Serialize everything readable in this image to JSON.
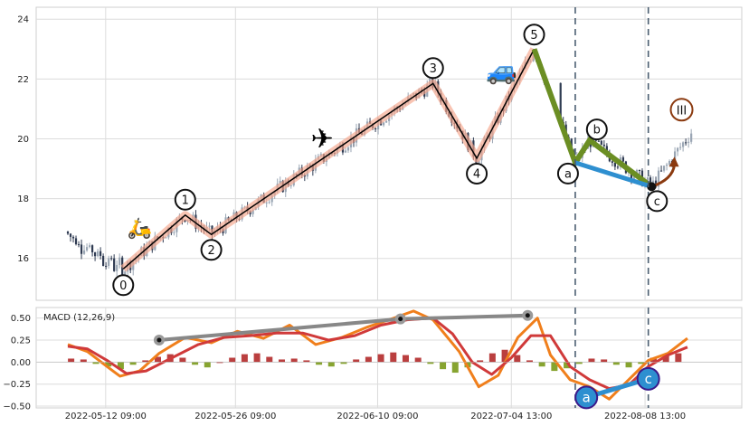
{
  "chart_data": [
    {
      "type": "candlestick",
      "panel": "price",
      "ylim": [
        14.6,
        24.4
      ],
      "yticks": [
        "16",
        "18",
        "20",
        "22",
        "24"
      ],
      "x_tick_labels": [
        "2022-05-12 09:00",
        "2022-05-26 09:00",
        "2022-06-10 09:00",
        "2022-07-04 13:00",
        "2022-08-08 13:00"
      ],
      "grid": true,
      "colors": {
        "up": "#9aa6b4",
        "down": "#2f3b52",
        "zigzag": "#000000",
        "zigzag_glow": "#f4a58a",
        "abc": "#6b8e23",
        "ac_line": "#2e8fd0",
        "projection": "#8b3a0f",
        "vline": "#4a5d70"
      },
      "waves": [
        {
          "label": "0",
          "t": 0.085,
          "y": 15.65
        },
        {
          "label": "1",
          "t": 0.18,
          "y": 17.45
        },
        {
          "label": "2",
          "t": 0.22,
          "y": 16.8
        },
        {
          "label": "3",
          "t": 0.56,
          "y": 21.85
        },
        {
          "label": "4",
          "t": 0.627,
          "y": 19.35
        },
        {
          "label": "5",
          "t": 0.715,
          "y": 23.0
        },
        {
          "label": "a",
          "t": 0.778,
          "y": 19.2
        },
        {
          "label": "b",
          "t": 0.8,
          "y": 19.95
        },
        {
          "label": "c",
          "t": 0.895,
          "y": 18.4
        }
      ],
      "projection": {
        "label": "III",
        "target_t": 0.93,
        "target_y": 19.25
      },
      "end_point": {
        "t": 0.935,
        "y": 20.9
      },
      "icons": [
        "scooter-icon",
        "airplane-icon",
        "car-icon"
      ],
      "vertical_line_times": [
        0.778,
        0.89
      ]
    },
    {
      "type": "bar+line",
      "panel": "macd",
      "title": "MACD (12,26,9)",
      "ylim": [
        -0.52,
        0.62
      ],
      "yticks": [
        "0.50",
        "0.25",
        "0.00",
        "−0.25",
        "−0.50"
      ],
      "series": [
        {
          "color": "#f07f1c",
          "points": [
            [
              0,
              0.2
            ],
            [
              0.03,
              0.12
            ],
            [
              0.06,
              -0.05
            ],
            [
              0.08,
              -0.16
            ],
            [
              0.11,
              -0.1
            ],
            [
              0.14,
              0.1
            ],
            [
              0.18,
              0.28
            ],
            [
              0.22,
              0.22
            ],
            [
              0.26,
              0.35
            ],
            [
              0.3,
              0.27
            ],
            [
              0.34,
              0.42
            ],
            [
              0.38,
              0.2
            ],
            [
              0.42,
              0.28
            ],
            [
              0.46,
              0.4
            ],
            [
              0.5,
              0.5
            ],
            [
              0.53,
              0.58
            ],
            [
              0.56,
              0.48
            ],
            [
              0.6,
              0.12
            ],
            [
              0.63,
              -0.28
            ],
            [
              0.66,
              -0.15
            ],
            [
              0.69,
              0.28
            ],
            [
              0.72,
              0.5
            ],
            [
              0.74,
              0.08
            ],
            [
              0.77,
              -0.2
            ],
            [
              0.8,
              -0.28
            ],
            [
              0.83,
              -0.42
            ],
            [
              0.86,
              -0.2
            ],
            [
              0.89,
              0.02
            ],
            [
              0.92,
              0.1
            ],
            [
              0.95,
              0.27
            ]
          ]
        },
        {
          "color": "#d03a3a",
          "points": [
            [
              0,
              0.18
            ],
            [
              0.03,
              0.15
            ],
            [
              0.06,
              0.02
            ],
            [
              0.09,
              -0.13
            ],
            [
              0.12,
              -0.1
            ],
            [
              0.16,
              0.05
            ],
            [
              0.2,
              0.2
            ],
            [
              0.24,
              0.28
            ],
            [
              0.28,
              0.3
            ],
            [
              0.32,
              0.33
            ],
            [
              0.36,
              0.33
            ],
            [
              0.4,
              0.25
            ],
            [
              0.44,
              0.3
            ],
            [
              0.48,
              0.42
            ],
            [
              0.52,
              0.48
            ],
            [
              0.56,
              0.5
            ],
            [
              0.59,
              0.32
            ],
            [
              0.62,
              0.0
            ],
            [
              0.65,
              -0.14
            ],
            [
              0.68,
              0.05
            ],
            [
              0.71,
              0.3
            ],
            [
              0.74,
              0.3
            ],
            [
              0.77,
              -0.05
            ],
            [
              0.8,
              -0.2
            ],
            [
              0.83,
              -0.3
            ],
            [
              0.86,
              -0.26
            ],
            [
              0.89,
              -0.05
            ],
            [
              0.92,
              0.08
            ],
            [
              0.95,
              0.17
            ]
          ]
        }
      ],
      "histogram": [
        0.04,
        0.03,
        -0.02,
        -0.05,
        -0.08,
        -0.03,
        0.02,
        0.06,
        0.09,
        0.05,
        -0.03,
        -0.06,
        0.0,
        0.05,
        0.09,
        0.1,
        0.06,
        0.03,
        0.04,
        0.02,
        -0.03,
        -0.05,
        -0.02,
        0.03,
        0.06,
        0.09,
        0.11,
        0.08,
        0.05,
        -0.02,
        -0.08,
        -0.12,
        -0.06,
        0.02,
        0.1,
        0.14,
        0.08,
        0.02,
        -0.05,
        -0.1,
        -0.07,
        -0.02,
        0.04,
        0.03,
        -0.03,
        -0.06,
        -0.02,
        0.05,
        0.09,
        0.1
      ],
      "divergences": [
        {
          "color": "#888888",
          "t1": 0.14,
          "y1": 0.25,
          "t2": 0.51,
          "y2": 0.49,
          "t3": 0.705,
          "y3": 0.53
        },
        {
          "color": "#2e8fd0",
          "t1": 0.795,
          "y1": -0.4,
          "t2": 0.89,
          "y2": -0.19,
          "labels": [
            "a",
            "c"
          ]
        }
      ],
      "vertical_line_times": [
        0.778,
        0.89
      ]
    }
  ]
}
